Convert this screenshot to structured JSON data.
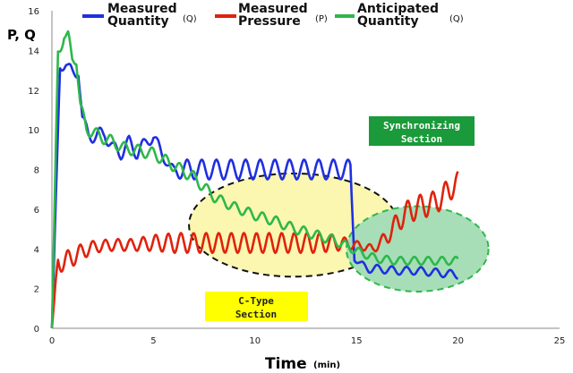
{
  "chart_data": {
    "type": "line",
    "ylabel": "P, Q",
    "xlabel": "Time",
    "xlabel_unit": "(min)",
    "xlim": [
      0,
      25
    ],
    "ylim": [
      0,
      16
    ],
    "x_ticks": [
      "0",
      "5",
      "10",
      "15",
      "20",
      "25"
    ],
    "y_ticks": [
      "0",
      "2",
      "4",
      "6",
      "8",
      "10",
      "12",
      "14",
      "16"
    ],
    "grid": false,
    "legend_position": "top",
    "series": [
      {
        "name": "Measured Quantity",
        "tag": "(Q)",
        "color": "#1f2fe0",
        "x": [
          0,
          0.4,
          0.7,
          1.0,
          1.3,
          1.5,
          1.8,
          2.2,
          2.6,
          3.0,
          3.4,
          3.8,
          4.2,
          4.6,
          5.0,
          5.4,
          5.7,
          6.0,
          6.5,
          7.0,
          8,
          9,
          10,
          11,
          12,
          13,
          14,
          14.5,
          14.7,
          14.9,
          15.2,
          15.6,
          16,
          17,
          18,
          19,
          20
        ],
        "y": [
          0,
          13.2,
          13.3,
          12.8,
          13.0,
          10.5,
          9.8,
          9.6,
          9.9,
          9.0,
          8.9,
          9.3,
          8.9,
          9.3,
          9.7,
          8.8,
          8.3,
          7.9,
          8.0,
          8.0,
          8.0,
          8.0,
          8.0,
          8.0,
          8.0,
          8.0,
          8.0,
          8.0,
          8.0,
          3.6,
          3.2,
          3.0,
          3.0,
          2.9,
          2.9,
          2.8,
          2.7
        ],
        "osc": [
          0,
          0.3,
          0.2,
          0.4,
          0.3,
          0.3,
          0.3,
          0.4,
          0.4,
          0.4,
          0.4,
          0.4,
          0.4,
          0.3,
          0.3,
          0.3,
          0.2,
          0.3,
          0.5,
          0.5,
          0.5,
          0.5,
          0.5,
          0.5,
          0.5,
          0.5,
          0.5,
          0.5,
          0.5,
          0.2,
          0.2,
          0.2,
          0.2,
          0.2,
          0.2,
          0.2,
          0.2
        ]
      },
      {
        "name": "Measured Pressure",
        "tag": "(P)",
        "color": "#e0220c",
        "x": [
          0,
          0.3,
          0.6,
          1,
          2,
          3,
          4,
          5,
          6,
          7,
          8,
          9,
          10,
          11,
          12,
          13,
          14,
          15,
          15.4,
          15.8,
          16.2,
          16.8,
          17.2,
          17.6,
          18,
          18.4,
          18.8,
          19.2,
          19.6,
          20
        ],
        "y": [
          0,
          3.4,
          3.3,
          3.6,
          4.1,
          4.2,
          4.2,
          4.3,
          4.3,
          4.3,
          4.3,
          4.3,
          4.3,
          4.3,
          4.3,
          4.3,
          4.3,
          4.2,
          4.1,
          4.0,
          4.3,
          5.0,
          5.6,
          5.9,
          6.1,
          6.2,
          6.3,
          6.6,
          7.0,
          7.4
        ],
        "osc": [
          0,
          0.5,
          0.5,
          0.5,
          0.3,
          0.3,
          0.3,
          0.4,
          0.5,
          0.5,
          0.5,
          0.5,
          0.5,
          0.5,
          0.5,
          0.5,
          0.4,
          0.2,
          0.2,
          0.2,
          0.3,
          0.5,
          0.6,
          0.6,
          0.6,
          0.6,
          0.6,
          0.6,
          0.6,
          0.5
        ]
      },
      {
        "name": "Anticipated Quantity",
        "tag": "(Q)",
        "color": "#2db84a",
        "x": [
          0,
          0.3,
          0.6,
          0.8,
          1.0,
          1.2,
          1.4,
          1.7,
          2.0,
          2.5,
          3,
          3.5,
          4,
          4.5,
          5,
          5.5,
          6,
          6.5,
          7,
          7.5,
          8,
          9,
          10,
          11,
          12,
          13,
          14,
          15,
          16,
          17,
          18,
          19,
          20
        ],
        "y": [
          0,
          13.8,
          14.8,
          14.6,
          13.5,
          13.7,
          11.2,
          10.0,
          9.9,
          9.6,
          9.4,
          9.1,
          9.0,
          8.9,
          8.8,
          8.5,
          8.2,
          7.9,
          7.6,
          7.1,
          6.6,
          6.1,
          5.7,
          5.4,
          5.0,
          4.7,
          4.4,
          3.9,
          3.5,
          3.4,
          3.4,
          3.4,
          3.4
        ],
        "osc": [
          0,
          0.4,
          0.3,
          0.4,
          0.3,
          0.4,
          0.3,
          0.3,
          0.3,
          0.3,
          0.3,
          0.3,
          0.3,
          0.3,
          0.3,
          0.3,
          0.3,
          0.3,
          0.3,
          0.3,
          0.25,
          0.25,
          0.25,
          0.25,
          0.25,
          0.25,
          0.25,
          0.2,
          0.2,
          0.2,
          0.2,
          0.2,
          0.2
        ]
      }
    ],
    "annotations": [
      {
        "id": "ctype",
        "text_line1": "C-Type",
        "text_line2": "Section",
        "fill": "#ffff00",
        "text_color": "#222222",
        "region_color": "#fbf6b0"
      },
      {
        "id": "sync",
        "text_line1": "Synchronizing",
        "text_line2": "Section",
        "fill": "#1a9a3a",
        "text_color": "#ffffff",
        "region_color": "#a7deb8"
      }
    ],
    "regions": [
      {
        "id": "ctype-region",
        "cx": 11.9,
        "cy": 5.2,
        "rx": 10.3,
        "ry": 5.2
      },
      {
        "id": "sync-region",
        "cx": 18.0,
        "cy": 4.0,
        "rx": 7.0,
        "ry": 4.3
      }
    ]
  }
}
